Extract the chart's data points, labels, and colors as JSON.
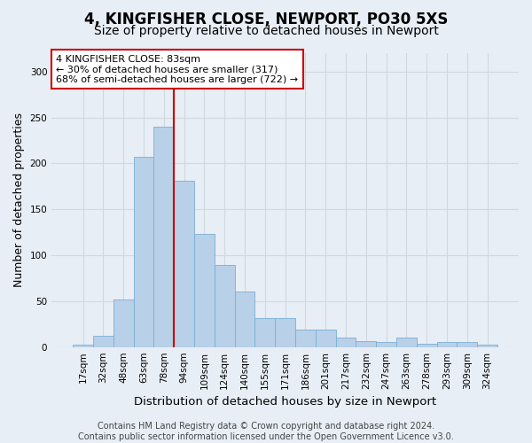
{
  "title1": "4, KINGFISHER CLOSE, NEWPORT, PO30 5XS",
  "title2": "Size of property relative to detached houses in Newport",
  "xlabel": "Distribution of detached houses by size in Newport",
  "ylabel": "Number of detached properties",
  "categories": [
    "17sqm",
    "32sqm",
    "48sqm",
    "63sqm",
    "78sqm",
    "94sqm",
    "109sqm",
    "124sqm",
    "140sqm",
    "155sqm",
    "171sqm",
    "186sqm",
    "201sqm",
    "217sqm",
    "232sqm",
    "247sqm",
    "263sqm",
    "278sqm",
    "293sqm",
    "309sqm",
    "324sqm"
  ],
  "values": [
    3,
    12,
    52,
    207,
    240,
    181,
    123,
    89,
    60,
    32,
    32,
    19,
    19,
    10,
    6,
    5,
    10,
    4,
    5,
    5,
    3
  ],
  "bar_color": "#b8d0e8",
  "bar_edge_color": "#7aafd4",
  "vline_color": "#cc0000",
  "vline_x_index": 4,
  "annotation_text": "4 KINGFISHER CLOSE: 83sqm\n← 30% of detached houses are smaller (317)\n68% of semi-detached houses are larger (722) →",
  "annotation_box_color": "#ffffff",
  "annotation_box_edge": "#cc0000",
  "ylim": [
    0,
    320
  ],
  "yticks": [
    0,
    50,
    100,
    150,
    200,
    250,
    300
  ],
  "grid_color": "#d0d8e0",
  "bg_color": "#e8eef5",
  "footer": "Contains HM Land Registry data © Crown copyright and database right 2024.\nContains public sector information licensed under the Open Government Licence v3.0.",
  "title1_fontsize": 12,
  "title2_fontsize": 10,
  "xlabel_fontsize": 9.5,
  "ylabel_fontsize": 9,
  "tick_fontsize": 7.5,
  "footer_fontsize": 7,
  "annot_fontsize": 8
}
